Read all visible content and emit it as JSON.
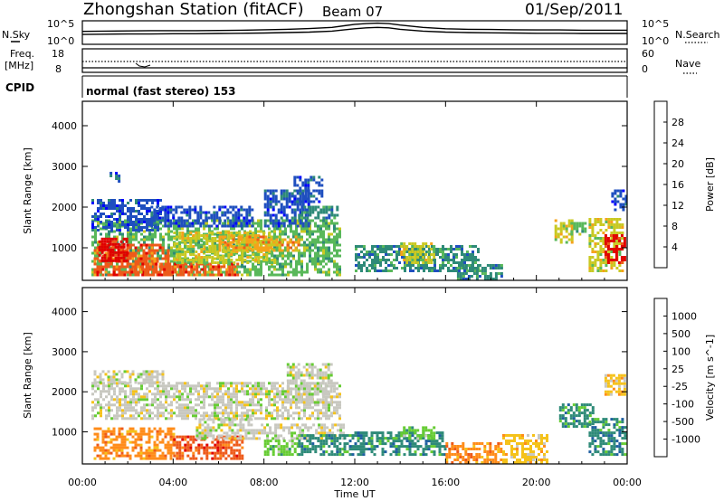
{
  "header": {
    "title": "Zhongshan Station (fitACF)",
    "beam": "Beam 07",
    "date": "01/Sep/2011"
  },
  "top_panel": {
    "left_label": "N.Sky",
    "right_label": "N.Search",
    "left_ticks": [
      "10^5",
      "10^0"
    ],
    "right_ticks": [
      "10^5",
      "10^0"
    ]
  },
  "freq_panel": {
    "left_label": "Freq.",
    "left_unit": "[MHz]",
    "left_ticks": [
      "18",
      "8"
    ],
    "right_label": "Nave",
    "right_ticks": [
      "60",
      "0"
    ]
  },
  "cpid": {
    "label": "CPID",
    "value": "normal (fast stereo) 153"
  },
  "chart_data": [
    {
      "type": "heatmap",
      "name": "Power",
      "ylabel": "Slant Range [km]",
      "yticks": [
        "1000",
        "2000",
        "3000",
        "4000"
      ],
      "ylim": [
        200,
        4600
      ],
      "xlim_hours": [
        0,
        24
      ],
      "colorbar": {
        "label": "Power [dB]",
        "ticks": [
          "4",
          "8",
          "12",
          "16",
          "20",
          "24",
          "28"
        ],
        "colors": [
          "#0000ff",
          "#1f4fbf",
          "#2e8a78",
          "#59b85a",
          "#c9c922",
          "#f5a21a",
          "#ee5a1a",
          "#e00000"
        ]
      },
      "regions": [
        {
          "t0": 0.4,
          "t1": 11.4,
          "r0": 300,
          "r1": 1700,
          "level": 3
        },
        {
          "t0": 0.5,
          "t1": 3.8,
          "r0": 300,
          "r1": 1100,
          "level": 6
        },
        {
          "t0": 0.7,
          "t1": 2.0,
          "r0": 650,
          "r1": 1200,
          "level": 7
        },
        {
          "t0": 2.0,
          "t1": 6.8,
          "r0": 300,
          "r1": 600,
          "level": 6
        },
        {
          "t0": 4.0,
          "t1": 8.5,
          "r0": 600,
          "r1": 1400,
          "level": 4
        },
        {
          "t0": 6.0,
          "t1": 9.5,
          "r0": 900,
          "r1": 1300,
          "level": 5
        },
        {
          "t0": 0.4,
          "t1": 3.5,
          "r0": 1400,
          "r1": 2200,
          "level": 1
        },
        {
          "t0": 3.0,
          "t1": 7.5,
          "r0": 1500,
          "r1": 2000,
          "level": 1
        },
        {
          "t0": 8.0,
          "t1": 10.0,
          "r0": 1500,
          "r1": 2400,
          "level": 1
        },
        {
          "t0": 9.5,
          "t1": 11.2,
          "r0": 1700,
          "r1": 2000,
          "level": 2
        },
        {
          "t0": 9.3,
          "t1": 10.5,
          "r0": 2100,
          "r1": 2700,
          "level": 1
        },
        {
          "t0": 1.2,
          "t1": 1.6,
          "r0": 2600,
          "r1": 2800,
          "level": 1
        },
        {
          "t0": 12.0,
          "t1": 17.5,
          "r0": 400,
          "r1": 1000,
          "level": 2
        },
        {
          "t0": 14.0,
          "t1": 15.5,
          "r0": 600,
          "r1": 1100,
          "level": 4
        },
        {
          "t0": 16.5,
          "t1": 18.5,
          "r0": 200,
          "r1": 600,
          "level": 2
        },
        {
          "t0": 20.8,
          "t1": 21.6,
          "r0": 1100,
          "r1": 1700,
          "level": 4
        },
        {
          "t0": 21.5,
          "t1": 22.2,
          "r0": 1300,
          "r1": 1600,
          "level": 3
        },
        {
          "t0": 22.3,
          "t1": 23.8,
          "r0": 400,
          "r1": 1700,
          "level": 4
        },
        {
          "t0": 23.0,
          "t1": 23.9,
          "r0": 600,
          "r1": 1300,
          "level": 7
        },
        {
          "t0": 23.3,
          "t1": 23.9,
          "r0": 1900,
          "r1": 2400,
          "level": 1
        }
      ]
    },
    {
      "type": "heatmap",
      "name": "Velocity",
      "ylabel": "Slant Range [km]",
      "yticks": [
        "1000",
        "2000",
        "3000",
        "4000"
      ],
      "ylim": [
        200,
        4600
      ],
      "xlim_hours": [
        0,
        24
      ],
      "colorbar": {
        "label": "Velocity [m s^-1]",
        "ticks": [
          "1000",
          "500",
          "100",
          "25",
          "-25",
          "-100",
          "-500",
          "-1000"
        ],
        "colors": [
          "#0033cc",
          "#1f5fa0",
          "#2e8a78",
          "#66cc33",
          "#c8c8c0",
          "#f5c21a",
          "#ff8c1a",
          "#ee5a1a",
          "#e00000"
        ]
      },
      "regions": [
        {
          "t0": 0.4,
          "t1": 11.4,
          "r0": 1300,
          "r1": 2200,
          "level": 4
        },
        {
          "t0": 0.5,
          "t1": 3.5,
          "r0": 2200,
          "r1": 2500,
          "level": 4
        },
        {
          "t0": 9.0,
          "t1": 11.0,
          "r0": 1700,
          "r1": 2700,
          "level": 4
        },
        {
          "t0": 0.5,
          "t1": 4.0,
          "r0": 300,
          "r1": 1100,
          "level": 6
        },
        {
          "t0": 4.0,
          "t1": 7.0,
          "r0": 300,
          "r1": 900,
          "level": 7
        },
        {
          "t0": 5.0,
          "t1": 7.5,
          "r0": 800,
          "r1": 1300,
          "level": 4
        },
        {
          "t0": 7.5,
          "t1": 11.5,
          "r0": 800,
          "r1": 1200,
          "level": 4
        },
        {
          "t0": 8.0,
          "t1": 9.5,
          "r0": 400,
          "r1": 800,
          "level": 3
        },
        {
          "t0": 9.5,
          "t1": 11.5,
          "r0": 400,
          "r1": 900,
          "level": 2
        },
        {
          "t0": 11.5,
          "t1": 16.0,
          "r0": 400,
          "r1": 1000,
          "level": 2
        },
        {
          "t0": 14.0,
          "t1": 15.5,
          "r0": 800,
          "r1": 1100,
          "level": 3
        },
        {
          "t0": 16.0,
          "t1": 18.5,
          "r0": 200,
          "r1": 700,
          "level": 6
        },
        {
          "t0": 18.5,
          "t1": 20.5,
          "r0": 200,
          "r1": 900,
          "level": 5
        },
        {
          "t0": 21.0,
          "t1": 22.5,
          "r0": 1100,
          "r1": 1700,
          "level": 2
        },
        {
          "t0": 22.3,
          "t1": 23.9,
          "r0": 400,
          "r1": 1300,
          "level": 2
        },
        {
          "t0": 23.0,
          "t1": 23.9,
          "r0": 1900,
          "r1": 2400,
          "level": 5
        }
      ]
    },
    {
      "type": "line",
      "name": "N.Sky / N.Search",
      "xlim_hours": [
        0,
        24
      ],
      "x": [
        0,
        1,
        2,
        3,
        4,
        5,
        6,
        7,
        8,
        9,
        10,
        11,
        12,
        12.5,
        13,
        13.5,
        14,
        15,
        16,
        17,
        18,
        19,
        20,
        21,
        22,
        23,
        24
      ],
      "series": [
        {
          "values": [
            0.55,
            0.56,
            0.57,
            0.58,
            0.58,
            0.58,
            0.59,
            0.6,
            0.62,
            0.64,
            0.67,
            0.72,
            0.85,
            0.88,
            0.9,
            0.88,
            0.82,
            0.72,
            0.66,
            0.64,
            0.63,
            0.62,
            0.61,
            0.61,
            0.6,
            0.6,
            0.6
          ]
        },
        {
          "values": [
            0.42,
            0.43,
            0.44,
            0.44,
            0.45,
            0.45,
            0.46,
            0.47,
            0.48,
            0.5,
            0.52,
            0.56,
            0.66,
            0.7,
            0.72,
            0.7,
            0.64,
            0.56,
            0.52,
            0.5,
            0.49,
            0.48,
            0.47,
            0.47,
            0.46,
            0.46,
            0.46
          ]
        }
      ]
    }
  ],
  "x_axis": {
    "ticks": [
      "00:00",
      "04:00",
      "08:00",
      "12:00",
      "16:00",
      "20:00",
      "00:00"
    ],
    "label": "Time UT"
  }
}
